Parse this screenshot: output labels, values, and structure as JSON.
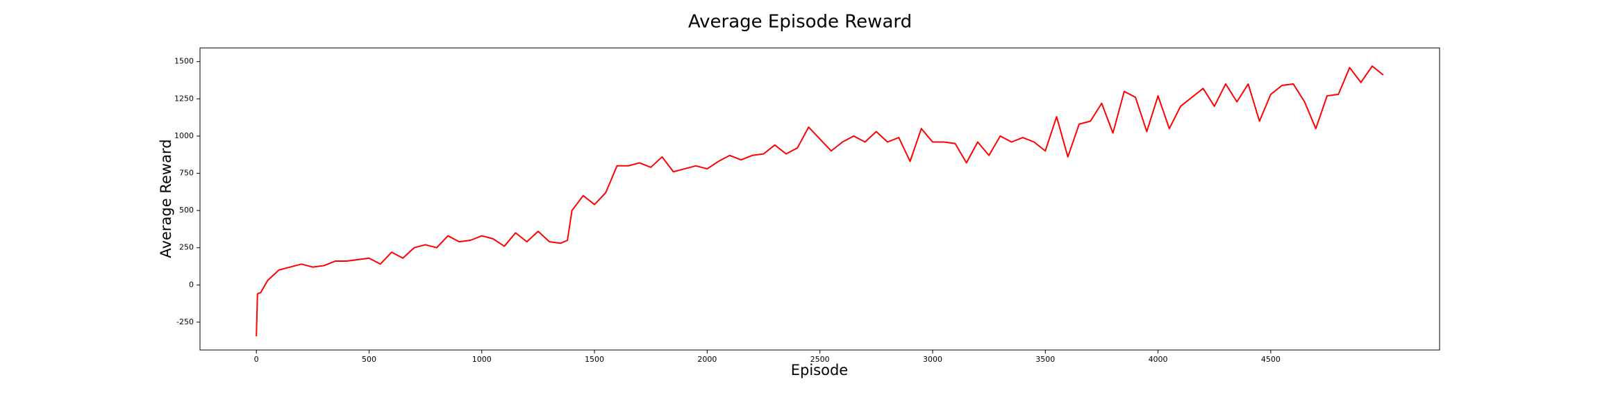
{
  "chart_data": {
    "type": "line",
    "title": "Average Episode Reward",
    "x_label": "Episode",
    "y_label": "Average Reward",
    "x": [
      0,
      5,
      20,
      50,
      100,
      150,
      200,
      250,
      300,
      350,
      400,
      450,
      500,
      550,
      600,
      650,
      700,
      750,
      800,
      850,
      900,
      950,
      1000,
      1050,
      1100,
      1150,
      1200,
      1250,
      1300,
      1350,
      1380,
      1400,
      1450,
      1500,
      1550,
      1600,
      1650,
      1700,
      1750,
      1800,
      1850,
      1900,
      1950,
      2000,
      2050,
      2100,
      2150,
      2200,
      2250,
      2300,
      2350,
      2400,
      2450,
      2500,
      2550,
      2600,
      2650,
      2700,
      2750,
      2800,
      2850,
      2900,
      2950,
      3000,
      3050,
      3100,
      3150,
      3200,
      3250,
      3300,
      3350,
      3400,
      3450,
      3500,
      3550,
      3600,
      3650,
      3700,
      3750,
      3800,
      3850,
      3900,
      3950,
      4000,
      4050,
      4100,
      4150,
      4200,
      4250,
      4300,
      4350,
      4400,
      4450,
      4500,
      4550,
      4600,
      4650,
      4700,
      4750,
      4800,
      4850,
      4900,
      4950,
      4999
    ],
    "series": [
      {
        "name": "Average Reward",
        "color": "#ff0000",
        "values": [
          -345,
          -60,
          -50,
          30,
          100,
          120,
          140,
          120,
          130,
          160,
          160,
          170,
          180,
          140,
          220,
          180,
          250,
          270,
          250,
          330,
          290,
          300,
          330,
          310,
          260,
          350,
          290,
          360,
          290,
          280,
          300,
          500,
          600,
          540,
          620,
          800,
          800,
          820,
          790,
          860,
          760,
          780,
          800,
          780,
          830,
          870,
          840,
          870,
          880,
          940,
          880,
          920,
          1060,
          980,
          900,
          960,
          1000,
          960,
          1030,
          960,
          990,
          830,
          1050,
          960,
          960,
          950,
          820,
          960,
          870,
          1000,
          960,
          990,
          960,
          900,
          1130,
          860,
          1080,
          1100,
          1220,
          1020,
          1300,
          1260,
          1030,
          1270,
          1050,
          1200,
          1260,
          1320,
          1200,
          1350,
          1230,
          1350,
          1100,
          1280,
          1340,
          1350,
          1230,
          1050,
          1270,
          1280,
          1460,
          1360,
          1470,
          1410
        ]
      }
    ],
    "xlim": [
      -250,
      5249
    ],
    "ylim": [
      -437,
      1592
    ],
    "xticks": [
      0,
      500,
      1000,
      1500,
      2000,
      2500,
      3000,
      3500,
      4000,
      4500
    ],
    "yticks": [
      -250,
      0,
      250,
      500,
      750,
      1000,
      1250,
      1500
    ]
  }
}
